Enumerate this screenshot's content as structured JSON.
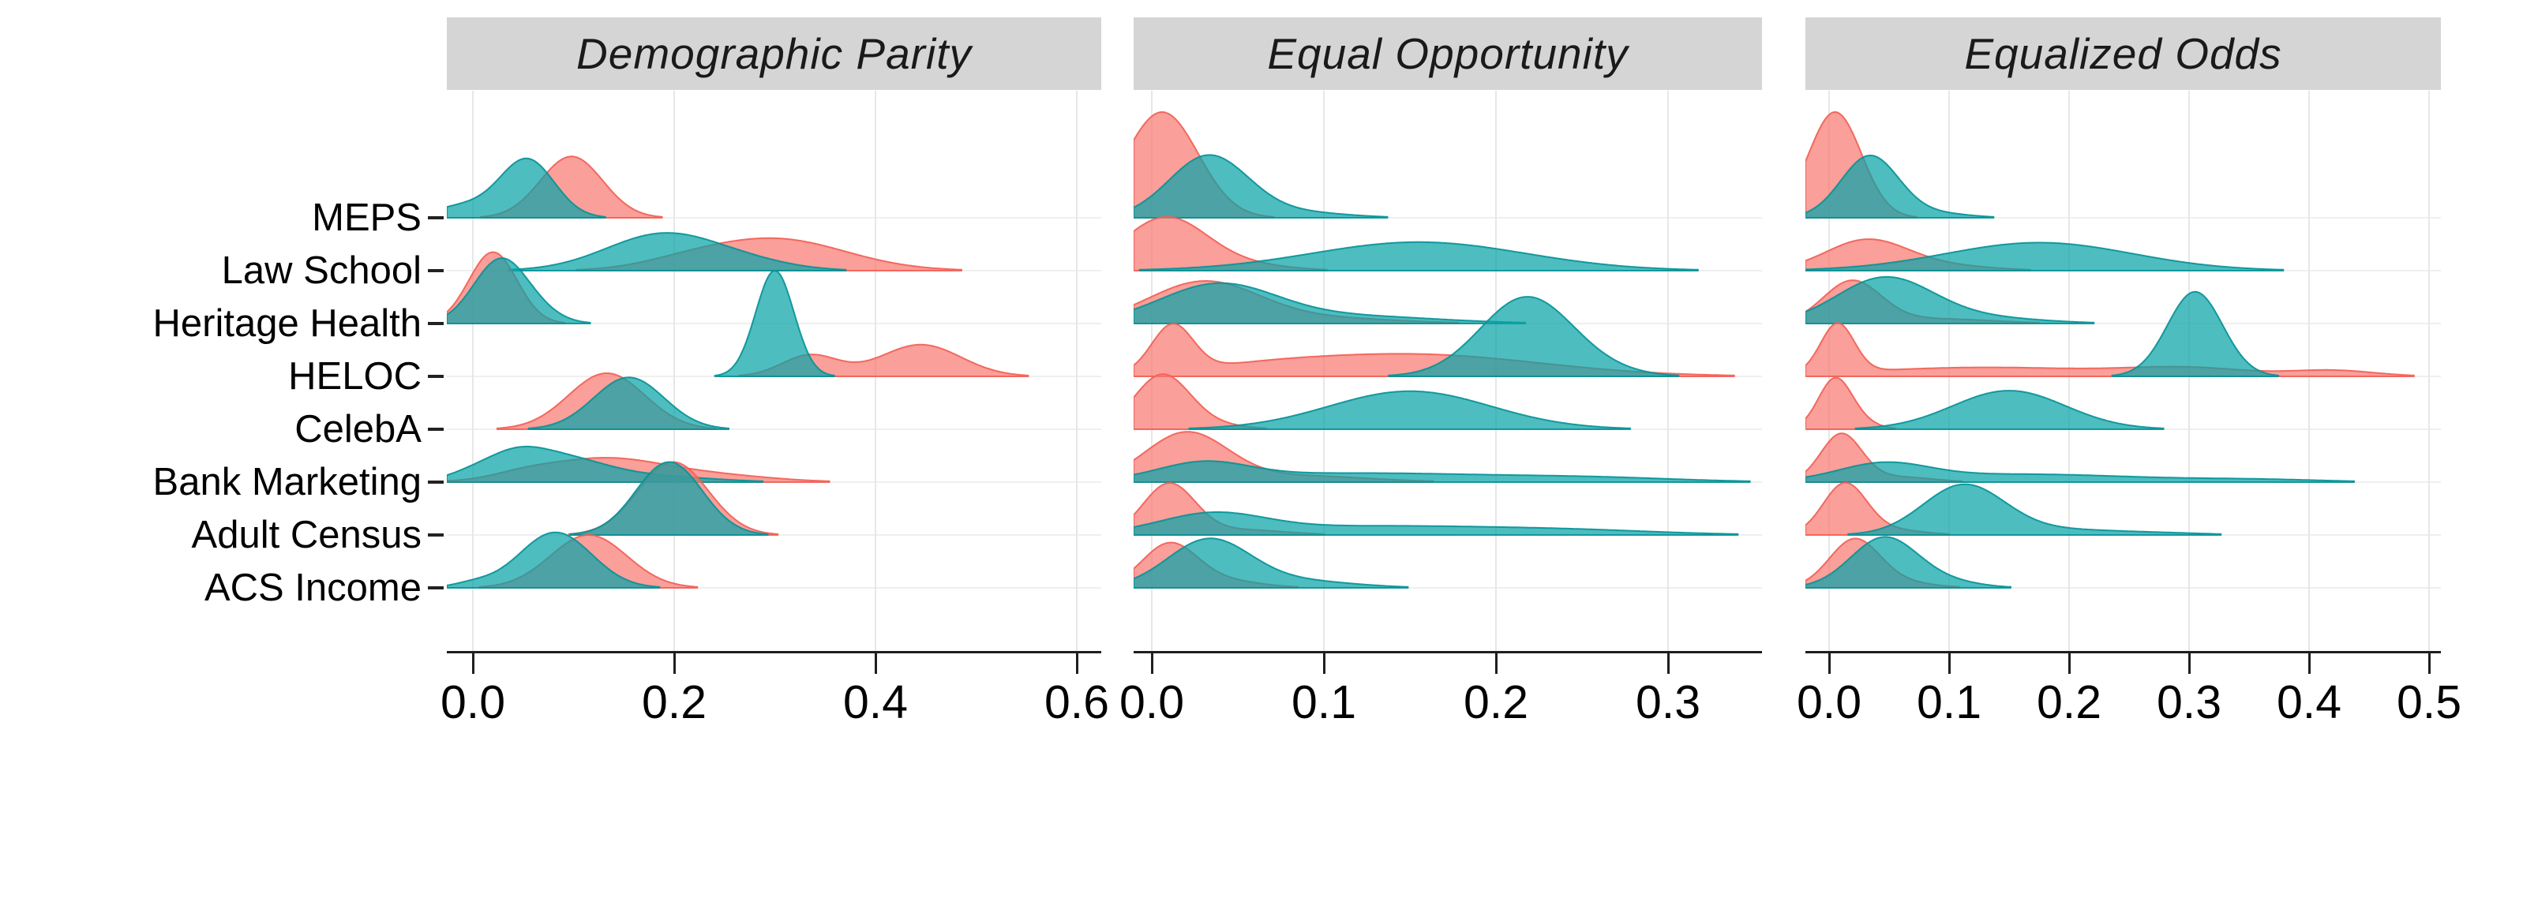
{
  "figure": {
    "kind": "faceted ridgeline density plot",
    "facet_titles": [
      "Demographic Parity",
      "Equal Opportunity",
      "Equalized Odds"
    ]
  },
  "y_axis": {
    "labels": [
      "MEPS",
      "Law School",
      "Heritage Health",
      "HELOC",
      "CelebA",
      "Bank Marketing",
      "Adult Census",
      "ACS Income"
    ]
  },
  "colors": {
    "salmon_fill": "rgba(248,118,109,0.70)",
    "salmon_stroke": "rgba(242,95,86,0.92)",
    "teal_fill": "rgba(9,163,168,0.72)",
    "teal_stroke": "rgba(8,146,151,0.92)",
    "strip_bg": "#d5d5d5",
    "grid_v": "#e7e7e7",
    "grid_h": "#efefef",
    "axis": "#1f1f1f"
  },
  "chart_data": {
    "type": "area",
    "subtype": "ridgeline-densities",
    "title": "",
    "xlabel": "",
    "ylabel": "",
    "legend": "none (two unlabeled groups per row: salmon and teal)",
    "grid": "major vertical gridlines at x ticks, horizontal gridline at each row baseline",
    "categories": [
      "MEPS",
      "Law School",
      "Heritage Health",
      "HELOC",
      "CelebA",
      "Bank Marketing",
      "Adult Census",
      "ACS Income"
    ],
    "mixture_format": "each density curve = sum of gaussians [mean_x, sd_x, peak_height_in_row_units]",
    "panels": [
      {
        "metric": "Demographic Parity",
        "x_ticks": [
          "0.0",
          "0.2",
          "0.4",
          "0.6"
        ],
        "x_tick_values": [
          0.0,
          0.2,
          0.4,
          0.6
        ],
        "xlim": [
          -0.026,
          0.624
        ],
        "rows": [
          {
            "dataset": "MEPS",
            "salmon": [
              [
                0.098,
                0.031,
                1.16
              ]
            ],
            "teal": [
              [
                0.054,
                0.027,
                1.1
              ],
              [
                -0.01,
                0.03,
                0.22
              ]
            ]
          },
          {
            "dataset": "Law School",
            "salmon": [
              [
                0.3,
                0.07,
                0.6
              ],
              [
                0.21,
                0.045,
                0.1
              ]
            ],
            "teal": [
              [
                0.19,
                0.057,
                0.7
              ],
              [
                0.28,
                0.045,
                0.1
              ]
            ]
          },
          {
            "dataset": "Heritage Health",
            "salmon": [
              [
                0.02,
                0.024,
                1.35
              ]
            ],
            "teal": [
              [
                0.028,
                0.027,
                1.22
              ],
              [
                0.07,
                0.022,
                0.1
              ]
            ]
          },
          {
            "dataset": "HELOC",
            "salmon": [
              [
                0.335,
                0.028,
                0.4
              ],
              [
                0.445,
                0.04,
                0.6
              ]
            ],
            "teal": [
              [
                0.3,
                0.019,
                2.0
              ]
            ]
          },
          {
            "dataset": "CelebA",
            "salmon": [
              [
                0.133,
                0.038,
                1.06
              ]
            ],
            "teal": [
              [
                0.155,
                0.035,
                0.98
              ]
            ]
          },
          {
            "dataset": "Bank Marketing",
            "salmon": [
              [
                0.13,
                0.062,
                0.45
              ],
              [
                0.05,
                0.03,
                0.08
              ],
              [
                0.25,
                0.055,
                0.1
              ]
            ],
            "teal": [
              [
                0.04,
                0.03,
                0.4
              ],
              [
                0.088,
                0.042,
                0.4
              ],
              [
                0.17,
                0.06,
                0.12
              ],
              [
                -0.005,
                0.025,
                0.12
              ]
            ]
          },
          {
            "dataset": "Adult Census",
            "salmon": [
              [
                0.199,
                0.035,
                1.38
              ]
            ],
            "teal": [
              [
                0.195,
                0.033,
                1.38
              ]
            ]
          },
          {
            "dataset": "ACS Income",
            "salmon": [
              [
                0.115,
                0.038,
                1.0
              ]
            ],
            "teal": [
              [
                0.082,
                0.036,
                1.05
              ],
              [
                0.0,
                0.02,
                0.08
              ]
            ]
          }
        ]
      },
      {
        "metric": "Equal Opportunity",
        "x_ticks": [
          "0.0",
          "0.1",
          "0.2",
          "0.3"
        ],
        "x_tick_values": [
          0.0,
          0.1,
          0.2,
          0.3
        ],
        "xlim": [
          -0.011,
          0.355
        ],
        "rows": [
          {
            "dataset": "MEPS",
            "salmon": [
              [
                0.006,
                0.021,
                2.0
              ]
            ],
            "teal": [
              [
                0.033,
                0.023,
                1.17
              ],
              [
                0.085,
                0.028,
                0.1
              ]
            ]
          },
          {
            "dataset": "Law School",
            "salmon": [
              [
                0.008,
                0.024,
                1.0
              ],
              [
                0.055,
                0.025,
                0.1
              ]
            ],
            "teal": [
              [
                0.155,
                0.062,
                0.54
              ]
            ]
          },
          {
            "dataset": "Heritage Health",
            "salmon": [
              [
                0.03,
                0.032,
                0.78
              ],
              [
                0.1,
                0.042,
                0.1
              ]
            ],
            "teal": [
              [
                0.038,
                0.034,
                0.72
              ],
              [
                0.115,
                0.05,
                0.14
              ]
            ]
          },
          {
            "dataset": "HELOC",
            "salmon": [
              [
                0.012,
                0.012,
                0.88
              ],
              [
                0.15,
                0.075,
                0.42
              ],
              [
                0.06,
                0.04,
                0.08
              ]
            ],
            "teal": [
              [
                0.218,
                0.027,
                1.5
              ],
              [
                0.265,
                0.022,
                0.06
              ]
            ]
          },
          {
            "dataset": "CelebA",
            "salmon": [
              [
                0.006,
                0.016,
                1.02
              ],
              [
                0.035,
                0.018,
                0.08
              ]
            ],
            "teal": [
              [
                0.15,
                0.047,
                0.72
              ]
            ]
          },
          {
            "dataset": "Bank Marketing",
            "salmon": [
              [
                0.02,
                0.024,
                0.92
              ],
              [
                0.085,
                0.04,
                0.12
              ]
            ],
            "teal": [
              [
                0.03,
                0.026,
                0.3
              ],
              [
                0.12,
                0.085,
                0.17
              ],
              [
                0.26,
                0.05,
                0.06
              ]
            ]
          },
          {
            "dataset": "Adult Census",
            "salmon": [
              [
                0.01,
                0.015,
                0.95
              ],
              [
                0.05,
                0.027,
                0.1
              ]
            ],
            "teal": [
              [
                0.035,
                0.03,
                0.34
              ],
              [
                0.13,
                0.085,
                0.17
              ],
              [
                0.25,
                0.05,
                0.05
              ]
            ]
          },
          {
            "dataset": "ACS Income",
            "salmon": [
              [
                0.01,
                0.016,
                0.8
              ],
              [
                0.04,
                0.022,
                0.14
              ]
            ],
            "teal": [
              [
                0.033,
                0.024,
                0.9
              ],
              [
                0.085,
                0.032,
                0.13
              ]
            ]
          }
        ]
      },
      {
        "metric": "Equalized Odds",
        "x_ticks": [
          "0.0",
          "0.1",
          "0.2",
          "0.3",
          "0.4",
          "0.5"
        ],
        "x_tick_values": [
          0.0,
          0.1,
          0.2,
          0.3,
          0.4,
          0.5
        ],
        "xlim": [
          -0.02,
          0.51
        ],
        "rows": [
          {
            "dataset": "MEPS",
            "salmon": [
              [
                0.005,
                0.022,
                2.0
              ]
            ],
            "teal": [
              [
                0.034,
                0.024,
                1.17
              ],
              [
                0.09,
                0.027,
                0.08
              ]
            ]
          },
          {
            "dataset": "Law School",
            "salmon": [
              [
                0.031,
                0.034,
                0.57
              ],
              [
                0.095,
                0.04,
                0.09
              ]
            ],
            "teal": [
              [
                0.175,
                0.078,
                0.53
              ]
            ]
          },
          {
            "dataset": "Heritage Health",
            "salmon": [
              [
                0.019,
                0.024,
                0.78
              ],
              [
                0.085,
                0.05,
                0.09
              ]
            ],
            "teal": [
              [
                0.046,
                0.04,
                0.85
              ],
              [
                0.125,
                0.05,
                0.11
              ]
            ]
          },
          {
            "dataset": "HELOC",
            "salmon": [
              [
                0.007,
                0.014,
                0.93
              ],
              [
                0.13,
                0.1,
                0.17
              ],
              [
                0.3,
                0.05,
                0.14
              ],
              [
                0.42,
                0.035,
                0.11
              ]
            ],
            "teal": [
              [
                0.305,
                0.023,
                1.6
              ]
            ]
          },
          {
            "dataset": "CelebA",
            "salmon": [
              [
                0.005,
                0.014,
                0.95
              ],
              [
                0.028,
                0.014,
                0.1
              ]
            ],
            "teal": [
              [
                0.15,
                0.047,
                0.73
              ]
            ]
          },
          {
            "dataset": "Bank Marketing",
            "salmon": [
              [
                0.01,
                0.017,
                0.89
              ],
              [
                0.055,
                0.03,
                0.1
              ]
            ],
            "teal": [
              [
                0.045,
                0.037,
                0.3
              ],
              [
                0.16,
                0.1,
                0.15
              ],
              [
                0.36,
                0.055,
                0.04
              ]
            ]
          },
          {
            "dataset": "Adult Census",
            "salmon": [
              [
                0.013,
                0.018,
                0.95
              ],
              [
                0.05,
                0.027,
                0.1
              ]
            ],
            "teal": [
              [
                0.112,
                0.034,
                0.93
              ],
              [
                0.19,
                0.05,
                0.1
              ],
              [
                0.28,
                0.04,
                0.03
              ]
            ]
          },
          {
            "dataset": "ACS Income",
            "salmon": [
              [
                0.021,
                0.021,
                0.9
              ],
              [
                0.06,
                0.026,
                0.1
              ]
            ],
            "teal": [
              [
                0.046,
                0.028,
                0.95
              ],
              [
                0.1,
                0.027,
                0.1
              ]
            ]
          }
        ]
      }
    ]
  }
}
